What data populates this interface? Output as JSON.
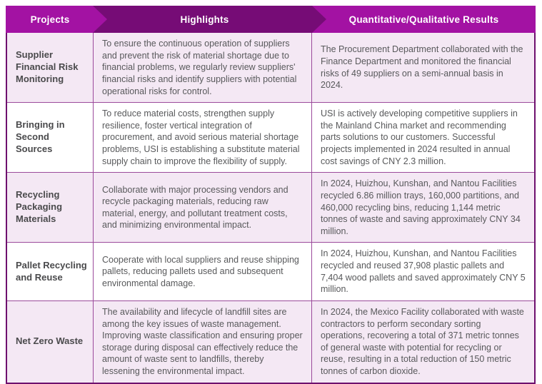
{
  "header": {
    "columns": [
      {
        "label": "Projects"
      },
      {
        "label": "Highlights"
      },
      {
        "label": "Quantitative/Qualitative Results"
      }
    ]
  },
  "table": {
    "rows": [
      {
        "project": "Supplier Financial Risk Monitoring",
        "highlights": "To ensure the continuous operation of suppliers and prevent the risk of material shortage due to financial problems, we regularly review suppliers' financial risks and identify suppliers with potential operational risks for control.",
        "results": "The Procurement Department collaborated with the Finance Department and monitored the financial risks of 49 suppliers on a semi-annual basis in 2024."
      },
      {
        "project": "Bringing in Second Sources",
        "highlights": "To reduce material costs, strengthen supply resilience, foster vertical integration of procurement, and avoid serious material shortage problems, USI is establishing a substitute material supply chain to improve the flexibility of supply.",
        "results": "USI is actively developing competitive suppliers in the Mainland China market and recommending parts solutions to our customers. Successful projects implemented in 2024 resulted in annual cost savings of CNY 2.3 million."
      },
      {
        "project": "Recycling Packaging Materials",
        "highlights": "Collaborate with major processing vendors and recycle packaging materials, reducing raw material, energy, and pollutant treatment costs, and minimizing environmental impact.",
        "results": "In 2024, Huizhou, Kunshan, and Nantou Facilities recycled 6.86 million trays, 160,000 partitions, and 460,000 recycling bins, reducing 1,144 metric tonnes of waste and saving approximately CNY 34 million."
      },
      {
        "project": "Pallet Recycling and Reuse",
        "highlights": "Cooperate with local suppliers and reuse shipping pallets, reducing pallets used and subsequent environmental damage.",
        "results": "In 2024, Huizhou, Kunshan, and Nantou Facilities recycled and reused 37,908 plastic pallets and 7,404 wood pallets and saved approximately CNY 5 million."
      },
      {
        "project": "Net Zero Waste",
        "highlights": "The availability and lifecycle of landfill sites are among the key issues of waste management. Improving waste classification and ensuring proper storage during disposal can effectively reduce the amount of waste sent to landfills, thereby lessening the environmental impact.",
        "results": "In 2024, the Mexico Facility collaborated with waste contractors to perform secondary sorting operations, recovering a total of 371 metric tonnes of general waste with potential for recycling or reuse, resulting in a total reduction of 150 metric tonnes of carbon dioxide."
      }
    ]
  },
  "colors": {
    "header_magenta": "#A312A3",
    "header_dark_purple": "#760C76",
    "row_alt_bg": "#F4E8F4",
    "row_plain_bg": "#FFFFFF",
    "border_outer": "#6E106E",
    "border_inner": "#9B4A9B",
    "body_text": "#58595B",
    "project_text": "#4A4A4C",
    "header_text": "#FFFFFF"
  }
}
